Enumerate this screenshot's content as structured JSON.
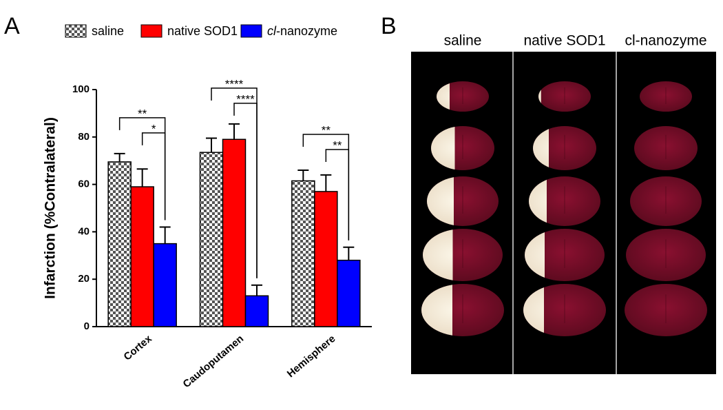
{
  "panel_labels": [
    "A",
    "B"
  ],
  "chart_data": {
    "type": "bar",
    "y_label": "Infarction (%Contralateral)",
    "categories": [
      "Cortex",
      "Caudoputamen",
      "Hemisphere"
    ],
    "series": [
      {
        "name": "saline",
        "color": "#7f7f7f",
        "pattern": "checkerboard",
        "values": [
          69.5,
          73.5,
          61.5
        ],
        "errors": [
          3.5,
          6,
          4.5
        ]
      },
      {
        "name": "native SOD1",
        "color": "#ff0000",
        "values": [
          59,
          79,
          57
        ],
        "errors": [
          7.5,
          6.5,
          7
        ]
      },
      {
        "name": "cl-nanozyme",
        "color": "#0000ff",
        "values": [
          35,
          13,
          28
        ],
        "errors": [
          7,
          4.5,
          5.5
        ]
      }
    ],
    "ylim": [
      0,
      100
    ],
    "yticks": [
      0,
      20,
      40,
      60,
      80,
      100
    ],
    "legend": "top",
    "significance": [
      {
        "category": "Cortex",
        "from": "saline",
        "to": "cl-nanozyme",
        "label": "**"
      },
      {
        "category": "Cortex",
        "from": "native SOD1",
        "to": "cl-nanozyme",
        "label": "*"
      },
      {
        "category": "Caudoputamen",
        "from": "saline",
        "to": "cl-nanozyme",
        "label": "****"
      },
      {
        "category": "Caudoputamen",
        "from": "native SOD1",
        "to": "cl-nanozyme",
        "label": "****"
      },
      {
        "category": "Hemisphere",
        "from": "saline",
        "to": "cl-nanozyme",
        "label": "**"
      },
      {
        "category": "Hemisphere",
        "from": "native SOD1",
        "to": "cl-nanozyme",
        "label": "**"
      }
    ]
  },
  "panel_b": {
    "columns": [
      "saline",
      "native SOD1",
      "cl-nanozyme"
    ]
  }
}
